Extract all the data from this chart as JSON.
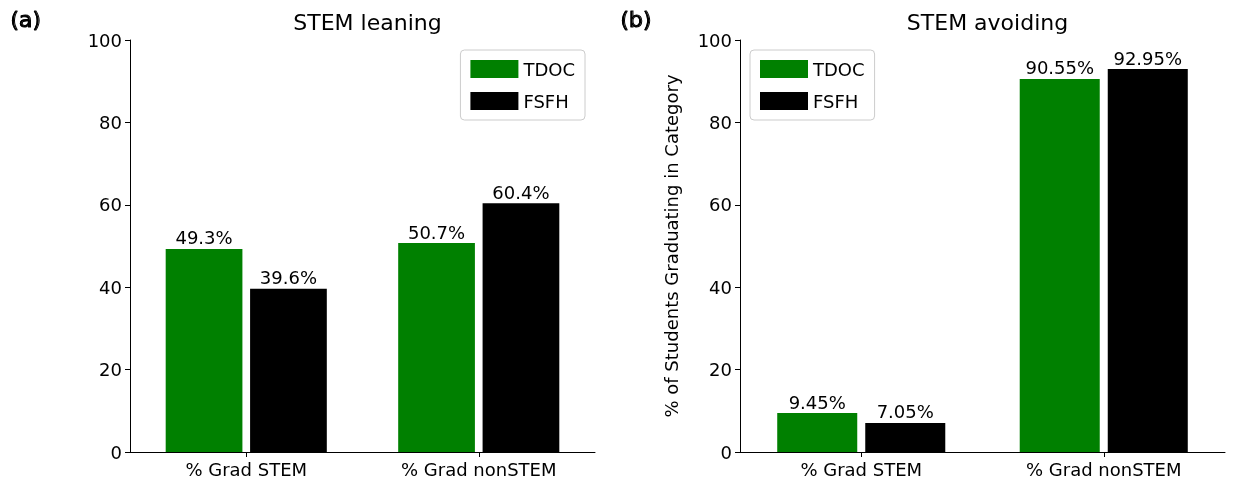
{
  "chart_data": [
    {
      "type": "bar",
      "title": "STEM leaning",
      "annotations": [
        "(a)"
      ],
      "categories": [
        "% Grad STEM",
        "% Grad nonSTEM"
      ],
      "series": [
        {
          "name": "TDOC",
          "color": "#008000",
          "values": [
            49.3,
            50.7
          ],
          "value_labels": [
            "49.3%",
            "50.7%"
          ]
        },
        {
          "name": "FSFH",
          "color": "#000000",
          "values": [
            39.6,
            60.4
          ],
          "value_labels": [
            "39.6%",
            "60.4%"
          ]
        }
      ],
      "ylim": [
        0,
        100
      ],
      "yticks": [
        0,
        20,
        40,
        60,
        80,
        100
      ],
      "grid": false,
      "legend": "top right"
    },
    {
      "type": "bar",
      "title": "STEM avoiding",
      "ylabel": "% of Students Graduating in Category",
      "annotations": [
        "(b)"
      ],
      "categories": [
        "% Grad STEM",
        "% Grad nonSTEM"
      ],
      "series": [
        {
          "name": "TDOC",
          "color": "#008000",
          "values": [
            9.45,
            90.55
          ],
          "value_labels": [
            "9.45%",
            "90.55%"
          ]
        },
        {
          "name": "FSFH",
          "color": "#000000",
          "values": [
            7.05,
            92.95
          ],
          "value_labels": [
            "7.05%",
            "92.95%"
          ]
        }
      ],
      "ylim": [
        0,
        100
      ],
      "yticks": [
        0,
        20,
        40,
        60,
        80,
        100
      ],
      "grid": false,
      "legend": "top left"
    }
  ]
}
